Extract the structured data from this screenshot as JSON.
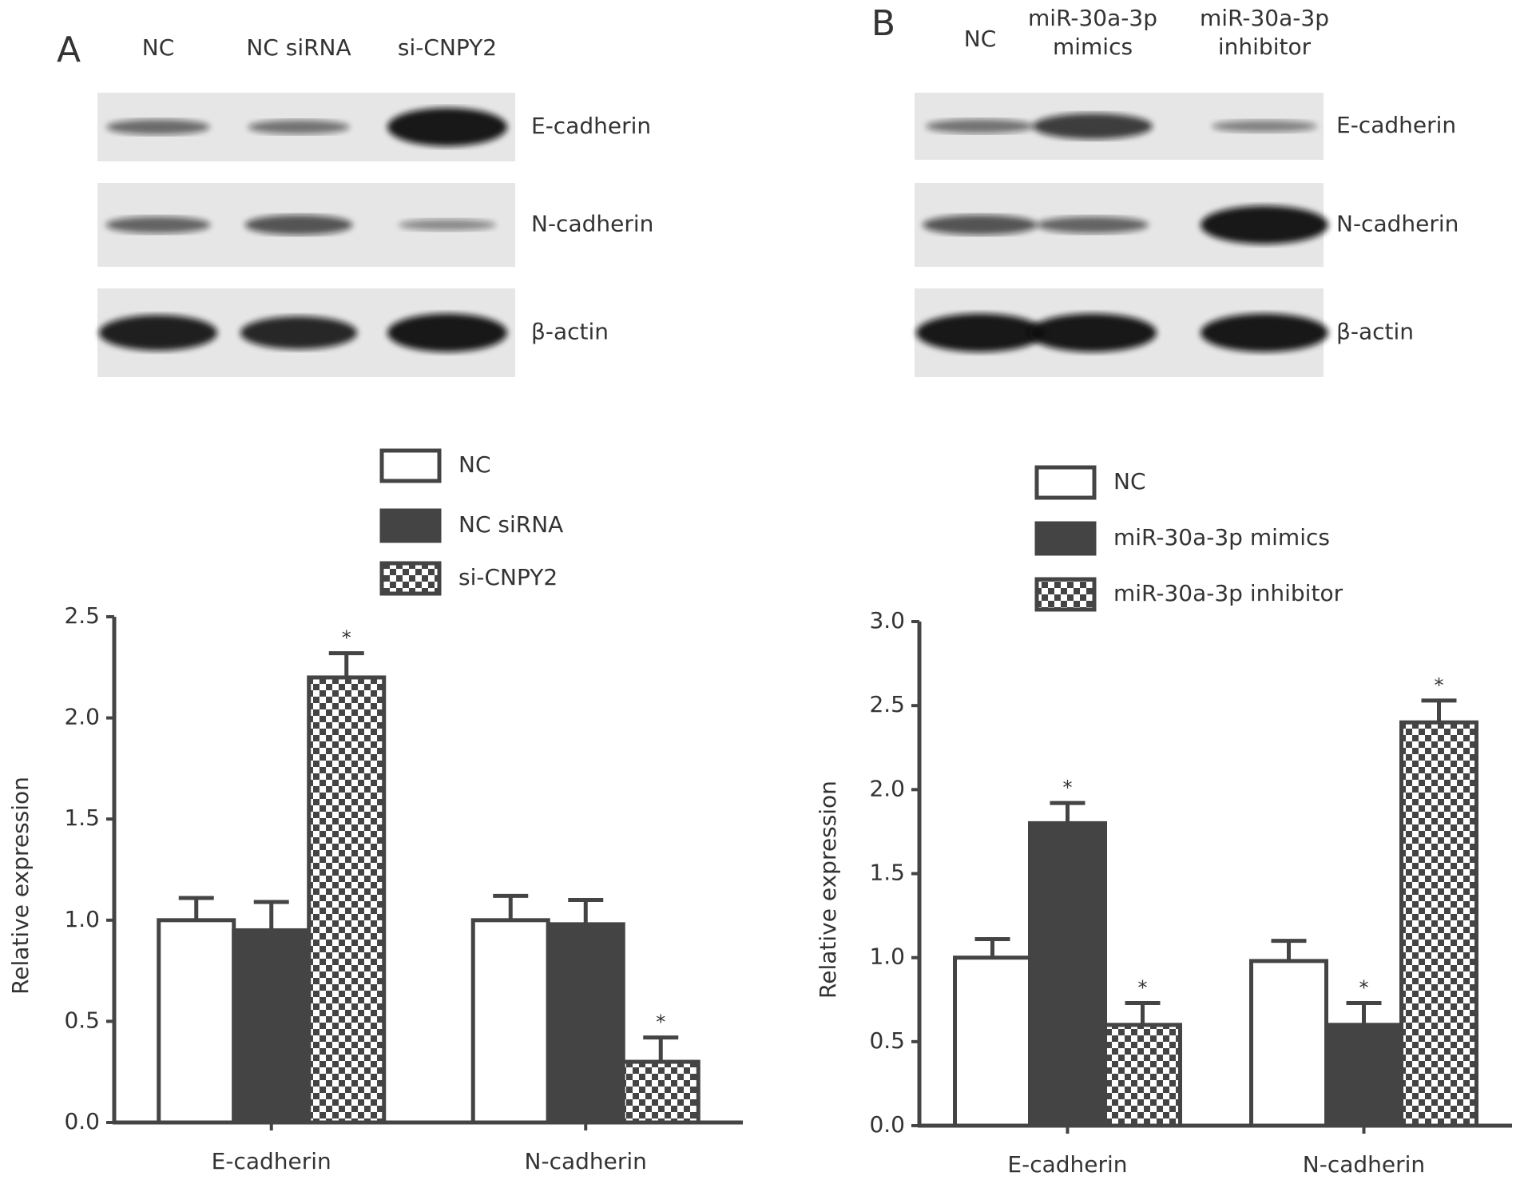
{
  "blots": [
    {
      "label": "A",
      "lanes": [
        [
          "NC"
        ],
        [
          "NC siRNA"
        ],
        [
          "si-CNPY2"
        ]
      ],
      "proteins": [
        "E-cadherin",
        "N-cadherin",
        "β-actin"
      ]
    },
    {
      "label": "B",
      "lanes": [
        [
          "NC"
        ],
        [
          "miR-30a-3p",
          "mimics"
        ],
        [
          "miR-30a-3p",
          "inhibitor"
        ]
      ],
      "proteins": [
        "E-cadherin",
        "N-cadherin",
        "β-actin"
      ]
    }
  ],
  "chart_data": [
    {
      "type": "bar",
      "ylabel": "Relative expression",
      "categories": [
        "E-cadherin",
        "N-cadherin"
      ],
      "ylim": [
        0,
        2.5
      ],
      "yticks": [
        {
          "value": 0,
          "label": "0.0"
        },
        {
          "value": 0.5,
          "label": "0.5"
        },
        {
          "value": 1,
          "label": "1.0"
        },
        {
          "value": 1.5,
          "label": "1.5"
        },
        {
          "value": 2,
          "label": "2.0"
        },
        {
          "value": 2.5,
          "label": "2.5"
        }
      ],
      "series": [
        {
          "name": "NC",
          "color": "#ffffff",
          "values": [
            1.0,
            1.0
          ],
          "errors": [
            0.11,
            0.12
          ],
          "significance": [
            null,
            null
          ]
        },
        {
          "name": "NC siRNA",
          "color": "#444444",
          "values": [
            0.95,
            0.98
          ],
          "errors": [
            0.14,
            0.12
          ],
          "significance": [
            null,
            null
          ]
        },
        {
          "name": "si-CNPY2",
          "color": "checker",
          "values": [
            2.2,
            0.3
          ],
          "errors": [
            0.12,
            0.12
          ],
          "significance": [
            "*",
            "*"
          ]
        }
      ]
    },
    {
      "type": "bar",
      "ylabel": "Relative expression",
      "categories": [
        "E-cadherin",
        "N-cadherin"
      ],
      "ylim": [
        0,
        3
      ],
      "yticks": [
        {
          "value": 0,
          "label": "0.0"
        },
        {
          "value": 0.5,
          "label": "0.5"
        },
        {
          "value": 1,
          "label": "1.0"
        },
        {
          "value": 1.5,
          "label": "1.5"
        },
        {
          "value": 2,
          "label": "2.0"
        },
        {
          "value": 2.5,
          "label": "2.5"
        },
        {
          "value": 3,
          "label": "3.0"
        }
      ],
      "series": [
        {
          "name": "NC",
          "color": "#ffffff",
          "values": [
            1.0,
            0.98
          ],
          "errors": [
            0.11,
            0.12
          ],
          "significance": [
            null,
            null
          ]
        },
        {
          "name": "miR-30a-3p mimics",
          "color": "#444444",
          "values": [
            1.8,
            0.6
          ],
          "errors": [
            0.12,
            0.13
          ],
          "significance": [
            "*",
            "*"
          ]
        },
        {
          "name": "miR-30a-3p inhibitor",
          "color": "checker",
          "values": [
            0.6,
            2.4
          ],
          "errors": [
            0.13,
            0.13
          ],
          "significance": [
            "*",
            "*"
          ]
        }
      ]
    }
  ]
}
